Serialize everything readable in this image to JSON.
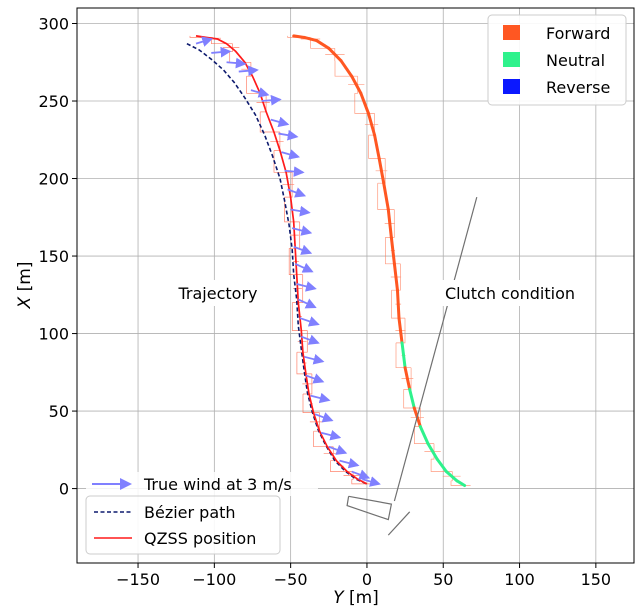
{
  "chart_data": {
    "type": "line",
    "xlabel": "Y [m]",
    "ylabel": "X [m]",
    "xlim": [
      -190,
      175
    ],
    "ylim": [
      -48,
      310
    ],
    "xticks": [
      "−150",
      "−100",
      "−50",
      "0",
      "50",
      "100",
      "150"
    ],
    "xtick_values": [
      -150,
      -100,
      -50,
      0,
      50,
      100,
      150
    ],
    "yticks": [
      "0",
      "50",
      "100",
      "150",
      "200",
      "250",
      "300"
    ],
    "ytick_values": [
      0,
      50,
      100,
      150,
      200,
      250,
      300
    ],
    "grid": true,
    "annotations": {
      "trajectory": "Trajectory",
      "clutch": "Clutch condition"
    },
    "legend_upper_right": {
      "placement": "top-right",
      "entries": [
        {
          "label": "Forward",
          "color": "#ff5722"
        },
        {
          "label": "Neutral",
          "color": "#2ef28c"
        },
        {
          "label": "Reverse",
          "color": "#0b18ff"
        }
      ]
    },
    "legend_lower_left": {
      "placement": "bottom-left",
      "entries": [
        {
          "label": "True wind at 3 m/s",
          "color": "#8080ff"
        },
        {
          "label": "Bézier path",
          "color": "#0d1a6e"
        },
        {
          "label": "QZSS position",
          "color": "#ff1a1a"
        }
      ]
    },
    "series": [
      {
        "name": "Bézier path",
        "color": "#0d1a6e",
        "points": [
          [
            -118,
            287
          ],
          [
            -110,
            283
          ],
          [
            -102,
            277
          ],
          [
            -94,
            270
          ],
          [
            -87,
            262
          ],
          [
            -80,
            252
          ],
          [
            -73,
            241
          ],
          [
            -67,
            228
          ],
          [
            -62,
            215
          ],
          [
            -57,
            200
          ],
          [
            -54,
            186
          ],
          [
            -51,
            170
          ],
          [
            -49,
            154
          ],
          [
            -48,
            138
          ],
          [
            -46,
            122
          ],
          [
            -45,
            105
          ],
          [
            -43,
            90
          ],
          [
            -41,
            75
          ],
          [
            -39,
            62
          ],
          [
            -36,
            50
          ],
          [
            -32,
            38
          ],
          [
            -27,
            28
          ],
          [
            -21,
            18
          ],
          [
            -14,
            11
          ],
          [
            -7,
            6
          ],
          [
            0,
            3
          ]
        ]
      },
      {
        "name": "QZSS position",
        "color": "#ff1a1a",
        "points": [
          [
            -112,
            292
          ],
          [
            -105,
            291
          ],
          [
            -98,
            290
          ],
          [
            -92,
            287
          ],
          [
            -86,
            282
          ],
          [
            -80,
            275
          ],
          [
            -75,
            266
          ],
          [
            -70,
            255
          ],
          [
            -66,
            243
          ],
          [
            -61,
            230
          ],
          [
            -57,
            218
          ],
          [
            -53,
            204
          ],
          [
            -50,
            188
          ],
          [
            -48,
            172
          ],
          [
            -47,
            155
          ],
          [
            -46,
            138
          ],
          [
            -45,
            120
          ],
          [
            -43,
            102
          ],
          [
            -42,
            88
          ],
          [
            -40,
            74
          ],
          [
            -38,
            61
          ],
          [
            -35,
            49
          ],
          [
            -31,
            37
          ],
          [
            -26,
            27
          ],
          [
            -20,
            18
          ],
          [
            -13,
            11
          ],
          [
            -6,
            6
          ],
          [
            0,
            3
          ]
        ]
      },
      {
        "name": "Clutch",
        "color": "#ff5722",
        "points": [
          [
            -48,
            292
          ],
          [
            -41,
            291
          ],
          [
            -33,
            289
          ],
          [
            -25,
            284
          ],
          [
            -17,
            276
          ],
          [
            -10,
            266
          ],
          [
            -4,
            255
          ],
          [
            1,
            242
          ],
          [
            5,
            228
          ],
          [
            8,
            213
          ],
          [
            11,
            197
          ],
          [
            14,
            180
          ],
          [
            16,
            162
          ],
          [
            18,
            145
          ],
          [
            20,
            128
          ],
          [
            21,
            110
          ],
          [
            23,
            94
          ],
          [
            25,
            78
          ],
          [
            28,
            64
          ],
          [
            31,
            52
          ],
          [
            35,
            40
          ],
          [
            40,
            29
          ],
          [
            46,
            19
          ],
          [
            52,
            11
          ],
          [
            59,
            5
          ],
          [
            64,
            2
          ]
        ]
      }
    ],
    "clutch_states": [
      "Forward",
      "Forward",
      "Forward",
      "Forward",
      "Forward",
      "Forward",
      "Forward",
      "Forward",
      "Forward",
      "Forward",
      "Forward",
      "Forward",
      "Forward",
      "Forward",
      "Forward",
      "Forward",
      "Neutral",
      "Forward",
      "Neutral",
      "Forward",
      "Neutral",
      "Neutral",
      "Neutral",
      "Neutral",
      "Neutral",
      "Forward"
    ],
    "wind_arrows": {
      "label": "True wind at 3 m/s",
      "vector": [
        12,
        0
      ],
      "origins": [
        [
          -112,
          287
        ],
        [
          -102,
          281
        ],
        [
          -92,
          275
        ],
        [
          -84,
          269
        ],
        [
          -76,
          257
        ],
        [
          -69,
          250
        ],
        [
          -63,
          238
        ],
        [
          -58,
          229
        ],
        [
          -56,
          217
        ],
        [
          -54,
          205
        ],
        [
          -52,
          193
        ],
        [
          -50,
          180
        ],
        [
          -49,
          168
        ],
        [
          -48,
          156
        ],
        [
          -47,
          145
        ],
        [
          -46,
          132
        ],
        [
          -45,
          122
        ],
        [
          -44,
          110
        ],
        [
          -43,
          98
        ],
        [
          -41,
          85
        ],
        [
          -40,
          73
        ],
        [
          -37,
          60
        ],
        [
          -34,
          48
        ],
        [
          -30,
          36
        ],
        [
          -25,
          27
        ],
        [
          -18,
          18
        ],
        [
          -10,
          11
        ],
        [
          -3,
          6
        ]
      ],
      "directions": [
        [
          10,
          3
        ],
        [
          12,
          1
        ],
        [
          12,
          -1
        ],
        [
          12,
          1
        ],
        [
          11,
          -3
        ],
        [
          12,
          1
        ],
        [
          11,
          -3
        ],
        [
          12,
          -2
        ],
        [
          11,
          -3
        ],
        [
          12,
          -1
        ],
        [
          11,
          -4
        ],
        [
          12,
          -2
        ],
        [
          12,
          -3
        ],
        [
          11,
          -4
        ],
        [
          11,
          -5
        ],
        [
          12,
          -3
        ],
        [
          11,
          -5
        ],
        [
          12,
          -4
        ],
        [
          11,
          -4
        ],
        [
          12,
          -3
        ],
        [
          11,
          -4
        ],
        [
          12,
          -3
        ],
        [
          11,
          -4
        ],
        [
          12,
          -3
        ],
        [
          11,
          -4
        ],
        [
          12,
          -3
        ],
        [
          11,
          -4
        ],
        [
          11,
          -3
        ]
      ]
    },
    "boat_outline": [
      [
        -12,
        -5
      ],
      [
        16,
        -10
      ],
      [
        14,
        -20
      ],
      [
        -13,
        -11
      ],
      [
        -12,
        -5
      ]
    ],
    "pointer_line": [
      [
        18,
        -8
      ],
      [
        72,
        188
      ]
    ],
    "pointer_line2": [
      [
        14,
        -30
      ],
      [
        28,
        -15
      ]
    ]
  }
}
